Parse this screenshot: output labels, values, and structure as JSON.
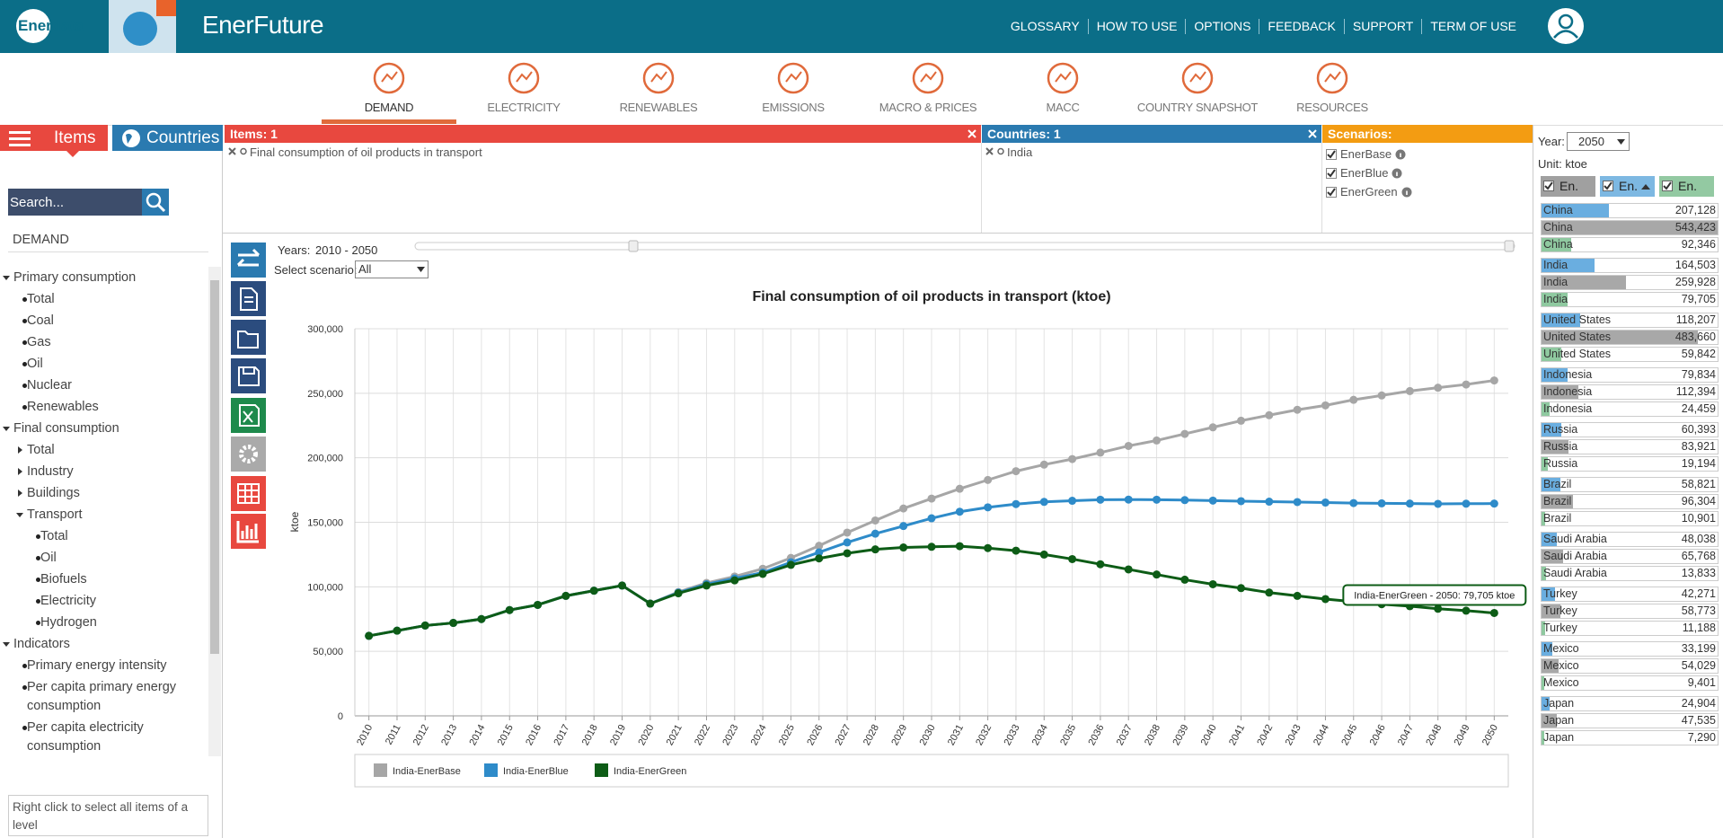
{
  "header": {
    "logo": "Enerdata",
    "app_name": "EnerFuture",
    "nav": [
      "GLOSSARY",
      "HOW TO USE",
      "OPTIONS",
      "FEEDBACK",
      "SUPPORT",
      "TERM OF USE"
    ]
  },
  "tabs": {
    "items": [
      "DEMAND",
      "ELECTRICITY",
      "RENEWABLES",
      "EMISSIONS",
      "MACRO & PRICES",
      "MACC",
      "COUNTRY SNAPSHOT",
      "RESOURCES"
    ],
    "active": 0
  },
  "sidebar": {
    "tabs": [
      "Items",
      "Countries"
    ],
    "search_placeholder": "Search...",
    "section": "DEMAND",
    "tree": [
      {
        "label": "Primary consumption",
        "children": [
          {
            "label": "Total"
          },
          {
            "label": "Coal"
          },
          {
            "label": "Gas"
          },
          {
            "label": "Oil"
          },
          {
            "label": "Nuclear"
          },
          {
            "label": "Renewables"
          }
        ]
      },
      {
        "label": "Final consumption",
        "children": [
          {
            "label": "Total",
            "collapsed": true
          },
          {
            "label": "Industry",
            "collapsed": true
          },
          {
            "label": "Buildings",
            "collapsed": true
          },
          {
            "label": "Transport",
            "children": [
              {
                "label": "Total"
              },
              {
                "label": "Oil"
              },
              {
                "label": "Biofuels"
              },
              {
                "label": "Electricity"
              },
              {
                "label": "Hydrogen"
              }
            ]
          }
        ]
      },
      {
        "label": "Indicators",
        "children": [
          {
            "label": "Primary energy intensity"
          },
          {
            "label": "Per capita primary energy consumption"
          },
          {
            "label": "Per capita electricity consumption"
          }
        ]
      }
    ],
    "hint": "Right click to select all items of a level"
  },
  "filters": {
    "items": {
      "title": "Items: 1",
      "selected": [
        "Final consumption of oil products in transport"
      ]
    },
    "countries": {
      "title": "Countries: 1",
      "selected": [
        "India"
      ]
    },
    "scenarios": {
      "title": "Scenarios:",
      "options": [
        {
          "label": "EnerBase",
          "checked": true
        },
        {
          "label": "EnerBlue",
          "checked": true
        },
        {
          "label": "EnerGreen",
          "checked": true
        }
      ]
    }
  },
  "controls": {
    "years_label": "Years:",
    "years_range": "2010 - 2050",
    "scenario_label": "Select scenario:",
    "scenario_value": "All"
  },
  "chart_data": {
    "type": "line",
    "title": "Final consumption of oil products in transport (ktoe)",
    "y_label": "ktoe",
    "categories": [
      "2010",
      "2011",
      "2012",
      "2013",
      "2014",
      "2015",
      "2016",
      "2017",
      "2018",
      "2019",
      "2020",
      "2021",
      "2022",
      "2023",
      "2024",
      "2025",
      "2026",
      "2027",
      "2028",
      "2029",
      "2030",
      "2031",
      "2032",
      "2033",
      "2034",
      "2035",
      "2036",
      "2037",
      "2038",
      "2039",
      "2040",
      "2041",
      "2042",
      "2043",
      "2044",
      "2045",
      "2046",
      "2047",
      "2048",
      "2049",
      "2050"
    ],
    "series": [
      {
        "name": "India-EnerBase",
        "color": "#a6a6a6",
        "values": [
          62000,
          66000,
          70000,
          72000,
          75000,
          82000,
          86000,
          93000,
          97000,
          101000,
          87000,
          96000,
          103000,
          108000,
          114000,
          122400,
          131800,
          142000,
          151400,
          160700,
          168400,
          176000,
          182800,
          189600,
          194700,
          199000,
          204000,
          209200,
          213400,
          218500,
          223600,
          228700,
          233000,
          237200,
          240600,
          244900,
          248300,
          251700,
          254300,
          256800,
          259928
        ]
      },
      {
        "name": "India-EnerBlue",
        "color": "#2e8bc9",
        "values": [
          62000,
          66000,
          70000,
          72000,
          75000,
          82000,
          86000,
          93000,
          97000,
          101000,
          87000,
          95500,
          102000,
          106500,
          111000,
          119000,
          126700,
          134400,
          141200,
          147100,
          153100,
          158200,
          161600,
          164100,
          165800,
          166700,
          167500,
          167600,
          167500,
          167200,
          166800,
          166400,
          166000,
          165700,
          165300,
          164900,
          164700,
          164500,
          164300,
          164400,
          164503
        ]
      },
      {
        "name": "India-EnerGreen",
        "color": "#0d5c16",
        "values": [
          62000,
          66000,
          70000,
          72000,
          75000,
          82000,
          86000,
          93000,
          97000,
          101000,
          87000,
          95000,
          101000,
          105000,
          110000,
          117000,
          122000,
          126000,
          129000,
          130500,
          131000,
          131500,
          130000,
          128000,
          125000,
          121500,
          117500,
          113500,
          109500,
          105500,
          102000,
          99000,
          95500,
          93000,
          90500,
          88500,
          86500,
          85000,
          83000,
          81500,
          79705
        ]
      }
    ],
    "ylim": [
      0,
      300000
    ],
    "yticks": [
      0,
      {
        "value": 50000,
        "label": "50,000"
      },
      {
        "value": 100000,
        "label": "100,000"
      },
      {
        "value": 150000,
        "label": "150,000"
      },
      {
        "value": 200000,
        "label": "200,000"
      },
      {
        "value": 250000,
        "label": "250,000"
      },
      {
        "value": 300000,
        "label": "300,000"
      }
    ],
    "grid": true,
    "legend": "bottom",
    "annotations": [
      "India-EnerGreen - 2050: 79,705 ktoe"
    ]
  },
  "ranking": {
    "year_label": "Year:",
    "year": "2050",
    "unit": "Unit: ktoe",
    "columns": [
      {
        "label": "En.",
        "color": "#a0a0a0"
      },
      {
        "label": "En.",
        "color": "#7db8e2"
      },
      {
        "label": "En.",
        "color": "#93c9a2"
      }
    ],
    "bar_colors": [
      "#6aaee0",
      "#a8a8a8",
      "#8fc9a0"
    ],
    "rows": [
      {
        "country": "China",
        "values": [
          207128,
          543423,
          92346
        ],
        "value_labels": [
          "207,128",
          "543,423",
          "92,346"
        ]
      },
      {
        "country": "India",
        "values": [
          164503,
          259928,
          79705
        ],
        "value_labels": [
          "164,503",
          "259,928",
          "79,705"
        ]
      },
      {
        "country": "United States",
        "values": [
          118207,
          483660,
          59842
        ],
        "value_labels": [
          "118,207",
          "483,660",
          "59,842"
        ]
      },
      {
        "country": "Indonesia",
        "values": [
          79834,
          112394,
          24459
        ],
        "value_labels": [
          "79,834",
          "112,394",
          "24,459"
        ]
      },
      {
        "country": "Russia",
        "values": [
          60393,
          83921,
          19194
        ],
        "value_labels": [
          "60,393",
          "83,921",
          "19,194"
        ]
      },
      {
        "country": "Brazil",
        "values": [
          58821,
          96304,
          10901
        ],
        "value_labels": [
          "58,821",
          "96,304",
          "10,901"
        ]
      },
      {
        "country": "Saudi Arabia",
        "values": [
          48038,
          65768,
          13833
        ],
        "value_labels": [
          "48,038",
          "65,768",
          "13,833"
        ]
      },
      {
        "country": "Turkey",
        "values": [
          42271,
          58773,
          11188
        ],
        "value_labels": [
          "42,271",
          "58,773",
          "11,188"
        ]
      },
      {
        "country": "Mexico",
        "values": [
          33199,
          54029,
          9401
        ],
        "value_labels": [
          "33,199",
          "54,029",
          "9,401"
        ]
      },
      {
        "country": "Japan",
        "values": [
          24904,
          47535,
          7290
        ],
        "value_labels": [
          "24,904",
          "47,535",
          "7,290"
        ]
      }
    ]
  }
}
